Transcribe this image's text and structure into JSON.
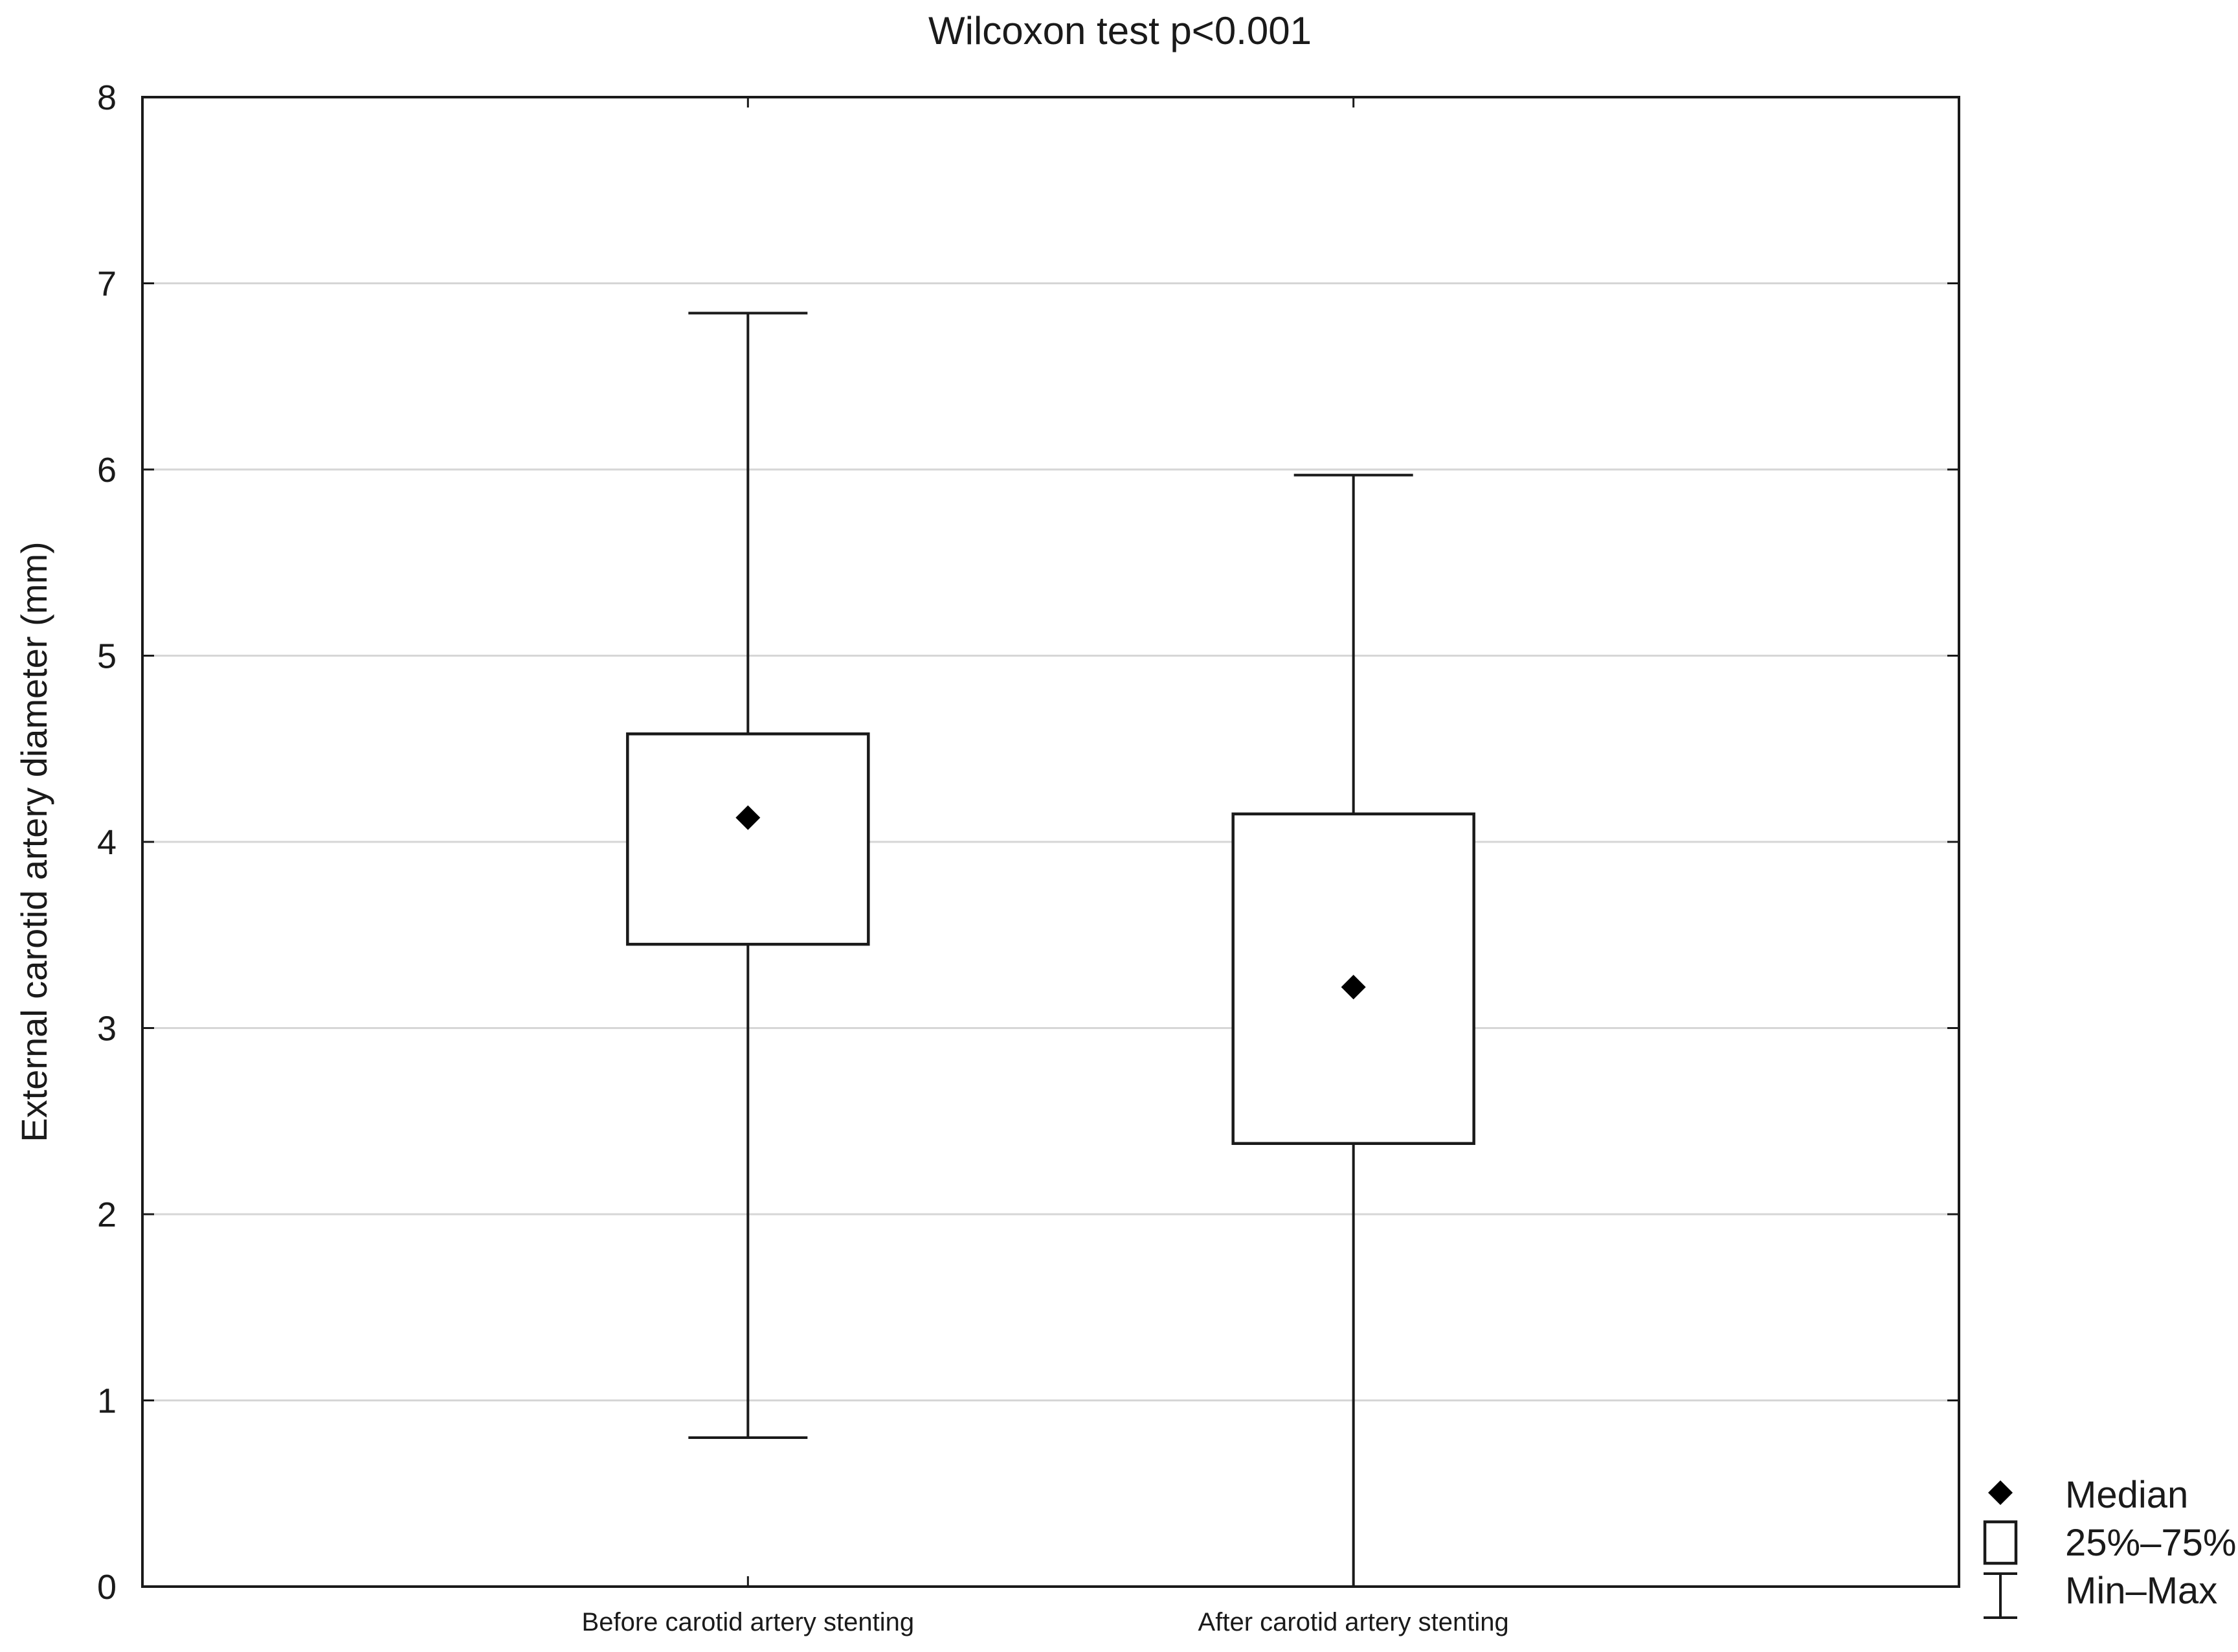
{
  "chart_data": {
    "type": "box",
    "title": "Wilcoxon test p<0.001",
    "xlabel": "",
    "ylabel": "External carotid artery diameter (mm)",
    "ylim": [
      0,
      8
    ],
    "yticks": [
      0,
      1,
      2,
      3,
      4,
      5,
      6,
      7,
      8
    ],
    "grid": true,
    "categories": [
      "Before carotid artery stenting",
      "After carotid artery stenting"
    ],
    "boxes": [
      {
        "category": "Before carotid artery stenting",
        "min": 0.8,
        "q1": 3.45,
        "median": 4.13,
        "q3": 4.58,
        "max": 6.84
      },
      {
        "category": "After carotid artery stenting",
        "min": 0.0,
        "q1": 2.38,
        "median": 3.22,
        "q3": 4.15,
        "max": 5.97
      }
    ],
    "legend": {
      "position": "bottom-right",
      "items": [
        {
          "symbol": "diamond",
          "label": "Median"
        },
        {
          "symbol": "box",
          "label": "25%–75%"
        },
        {
          "symbol": "whisker",
          "label": "Min–Max"
        }
      ]
    }
  }
}
